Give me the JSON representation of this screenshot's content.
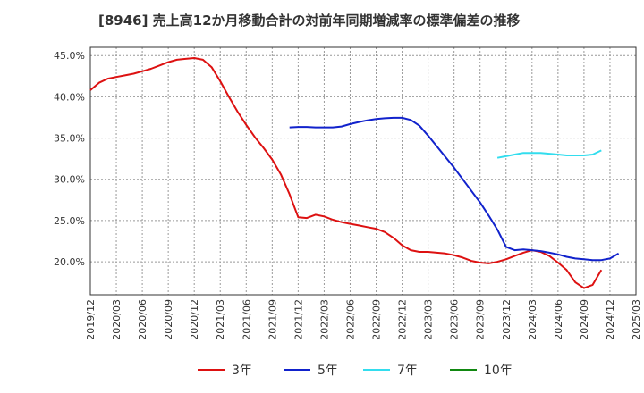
{
  "chart_data": {
    "type": "line",
    "title": "[8946]  売上高12か月移動合計の対前年同期増減率の標準偏差の推移",
    "xlabel": "",
    "ylabel": "",
    "ylim": [
      16,
      46
    ],
    "yticks": [
      20,
      25,
      30,
      35,
      40,
      45
    ],
    "ytick_labels": [
      "20.0%",
      "25.0%",
      "30.0%",
      "35.0%",
      "40.0%",
      "45.0%"
    ],
    "x_start": "2019-12",
    "x_end": "2025-03",
    "xtick_labels": [
      "2019/12",
      "2020/03",
      "2020/06",
      "2020/09",
      "2020/12",
      "2021/03",
      "2021/06",
      "2021/09",
      "2021/12",
      "2022/03",
      "2022/06",
      "2022/09",
      "2022/12",
      "2023/03",
      "2023/06",
      "2023/09",
      "2023/12",
      "2024/03",
      "2024/06",
      "2024/09",
      "2024/12",
      "2025/03"
    ],
    "grid": true,
    "legend_position": "bottom",
    "series": [
      {
        "name": "3年",
        "color": "#dd1111",
        "start": "2019-12",
        "values": [
          40.8,
          41.7,
          42.2,
          42.4,
          42.6,
          42.8,
          43.1,
          43.4,
          43.8,
          44.2,
          44.5,
          44.6,
          44.7,
          44.5,
          43.6,
          41.9,
          40.0,
          38.2,
          36.6,
          35.1,
          33.8,
          32.4,
          30.6,
          28.2,
          25.4,
          25.3,
          25.7,
          25.5,
          25.1,
          24.8,
          24.6,
          24.4,
          24.2,
          24.0,
          23.6,
          22.9,
          22.0,
          21.4,
          21.2,
          21.2,
          21.1,
          21.0,
          20.8,
          20.5,
          20.1,
          19.9,
          19.8,
          20.0,
          20.3,
          20.7,
          21.1,
          21.4,
          21.2,
          20.7,
          19.9,
          19.0,
          17.5,
          16.8,
          17.2,
          19.0
        ]
      },
      {
        "name": "5年",
        "color": "#1122cc",
        "start": "2021-11",
        "values": [
          36.3,
          36.35,
          36.35,
          36.3,
          36.3,
          36.3,
          36.4,
          36.7,
          36.95,
          37.15,
          37.3,
          37.4,
          37.45,
          37.45,
          37.2,
          36.5,
          35.3,
          34.0,
          32.7,
          31.4,
          30.0,
          28.6,
          27.2,
          25.6,
          23.9,
          21.8,
          21.4,
          21.5,
          21.4,
          21.3,
          21.1,
          20.9,
          20.6,
          20.4,
          20.3,
          20.2,
          20.2,
          20.4,
          21.0
        ]
      },
      {
        "name": "7年",
        "color": "#33ddee",
        "start": "2023-11",
        "values": [
          32.6,
          32.8,
          33.0,
          33.2,
          33.2,
          33.2,
          33.1,
          33.0,
          32.9,
          32.9,
          32.9,
          33.0,
          33.5
        ]
      },
      {
        "name": "10年",
        "color": "#118811",
        "start": "2019-12",
        "values": []
      }
    ]
  }
}
